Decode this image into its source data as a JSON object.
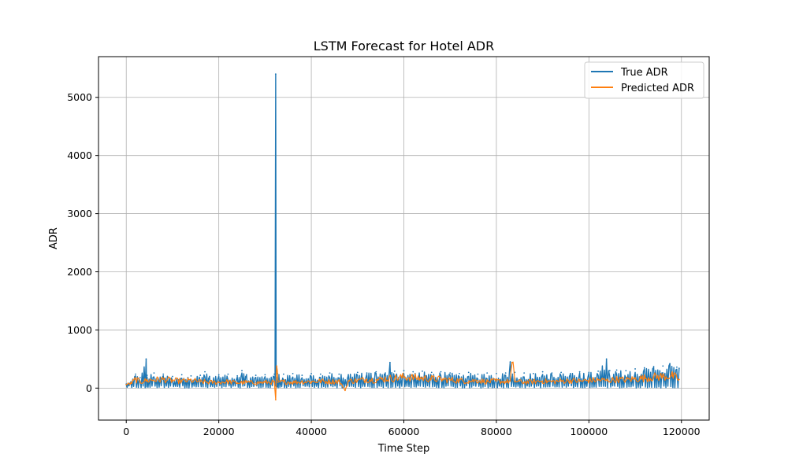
{
  "chart_data": {
    "type": "line",
    "title": "LSTM Forecast for Hotel ADR",
    "xlabel": "Time Step",
    "ylabel": "ADR",
    "xlim": [
      -6000,
      126000
    ],
    "ylim": [
      -550,
      5700
    ],
    "xticks": [
      0,
      20000,
      40000,
      60000,
      80000,
      100000,
      120000
    ],
    "yticks": [
      0,
      1000,
      2000,
      3000,
      4000,
      5000
    ],
    "grid": true,
    "legend_position": "top-right",
    "series": [
      {
        "name": "True ADR",
        "color": "#1f77b4",
        "x": [
          0,
          1000,
          2000,
          3000,
          4300,
          4500,
          6000,
          8000,
          10000,
          12000,
          14000,
          16000,
          17000,
          18000,
          20000,
          22000,
          24000,
          25000,
          26000,
          28000,
          30000,
          32000,
          32300,
          32500,
          32700,
          33000,
          34000,
          36000,
          38000,
          40000,
          42000,
          44000,
          46000,
          48000,
          50000,
          52000,
          54000,
          56000,
          57000,
          58000,
          60000,
          62000,
          64000,
          66000,
          68000,
          70000,
          72000,
          74000,
          76000,
          78000,
          80000,
          82000,
          83000,
          83500,
          84000,
          86000,
          88000,
          90000,
          92000,
          94000,
          96000,
          98000,
          100000,
          102000,
          103800,
          104500,
          106000,
          108000,
          110000,
          112000,
          114000,
          116000,
          117500,
          119000,
          119500
        ],
        "values": [
          70,
          110,
          240,
          180,
          500,
          220,
          260,
          240,
          200,
          230,
          210,
          220,
          280,
          200,
          230,
          240,
          210,
          300,
          230,
          220,
          230,
          240,
          5400,
          60,
          250,
          230,
          240,
          250,
          220,
          250,
          240,
          260,
          240,
          230,
          270,
          260,
          280,
          260,
          440,
          290,
          300,
          280,
          290,
          270,
          280,
          260,
          250,
          270,
          240,
          260,
          250,
          260,
          450,
          240,
          270,
          260,
          250,
          280,
          260,
          270,
          250,
          280,
          270,
          290,
          500,
          300,
          310,
          300,
          330,
          350,
          370,
          380,
          420,
          360,
          340
        ]
      },
      {
        "name": "Predicted ADR",
        "color": "#ff7f0e",
        "x": [
          0,
          1000,
          2000,
          3000,
          4500,
          6000,
          8000,
          10000,
          12000,
          14000,
          16000,
          18000,
          20000,
          22000,
          24000,
          26000,
          28000,
          30000,
          32000,
          32300,
          32500,
          32800,
          34000,
          36000,
          38000,
          40000,
          42000,
          44000,
          46000,
          47300,
          48000,
          50000,
          52000,
          54000,
          56000,
          58000,
          60000,
          62000,
          64000,
          66000,
          68000,
          70000,
          72000,
          74000,
          76000,
          78000,
          80000,
          82000,
          83000,
          83400,
          84000,
          86000,
          88000,
          90000,
          92000,
          94000,
          96000,
          98000,
          100000,
          102000,
          104000,
          106000,
          108000,
          110000,
          112000,
          114000,
          116000,
          118000,
          119500
        ],
        "values": [
          60,
          80,
          150,
          110,
          130,
          140,
          150,
          130,
          120,
          130,
          110,
          100,
          100,
          110,
          90,
          100,
          90,
          100,
          100,
          -200,
          380,
          100,
          110,
          100,
          110,
          110,
          120,
          110,
          120,
          -40,
          120,
          130,
          150,
          140,
          160,
          170,
          190,
          180,
          170,
          160,
          150,
          140,
          130,
          120,
          130,
          110,
          120,
          110,
          120,
          440,
          120,
          100,
          110,
          120,
          110,
          120,
          130,
          120,
          130,
          140,
          130,
          150,
          140,
          160,
          170,
          190,
          200,
          210,
          150
        ]
      }
    ]
  }
}
